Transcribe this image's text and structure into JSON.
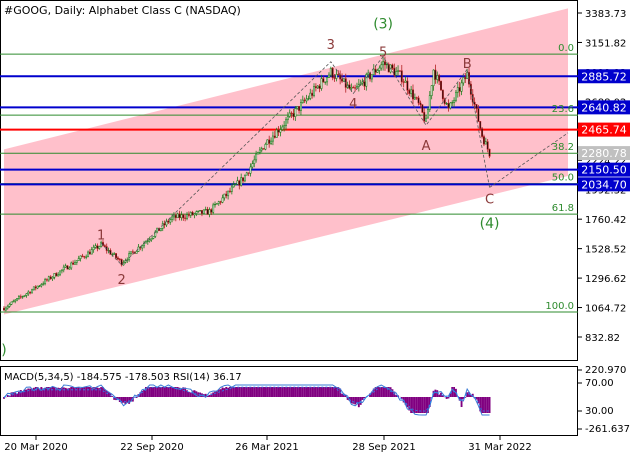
{
  "title": "#GOOG, Daily:  Alphabet Class C (NASDAQ)",
  "indicator_label": "MACD(5,34,5) -184.575 -178.503 RSI(14) 36.17",
  "colors": {
    "channel": "#ffc0cb",
    "candle_up": "#1e7f1e",
    "candle_down": "#b22222",
    "fib_line": "#2e8b2e",
    "fib_text": "#2e8b2e",
    "blue_level": "#0000cd",
    "red_level": "#ff0000",
    "wave_label": "#8b3a3a",
    "wave_label_major": "#2e8b2e",
    "macd_hist": "#800080",
    "macd_signal": "#1e90ff",
    "rsi": "#3a7bd5",
    "price_box_text": "#ffffff"
  },
  "chart_data": {
    "type": "candlestick",
    "price_axis_ticks": [
      3383.73,
      3151.82,
      2919.92,
      2688.02,
      2456.12,
      2224.22,
      1992.32,
      1760.42,
      1528.52,
      1296.62,
      1064.72,
      832.82
    ],
    "price_axis_labels": [
      "3383.73",
      "3151.82",
      "2919.92",
      "2688.02",
      "2456.12",
      "2224.22",
      "1992.32",
      "1760.42",
      "1528.52",
      "1296.62",
      "1064.72",
      "832.82"
    ],
    "time_labels": [
      "20 Mar 2020",
      "22 Sep 2020",
      "26 Mar 2021",
      "28 Sep 2021",
      "31 Mar 2022"
    ],
    "price_levels": [
      {
        "label": "2885.72",
        "value": 2885.72,
        "color": "blue"
      },
      {
        "label": "2640.82",
        "value": 2640.82,
        "color": "blue"
      },
      {
        "label": "2465.74",
        "value": 2465.74,
        "color": "red"
      },
      {
        "label": "2280.78",
        "value": 2280.78,
        "color": "gray"
      },
      {
        "label": "2150.50",
        "value": 2150.5,
        "color": "blue"
      },
      {
        "label": "2034.70",
        "value": 2034.7,
        "color": "blue"
      }
    ],
    "fibonacci": [
      {
        "label": "0.0",
        "value": 3060
      },
      {
        "label": "23.6",
        "value": 2580
      },
      {
        "label": "38.2",
        "value": 2280
      },
      {
        "label": "50.0",
        "value": 2040
      },
      {
        "label": "61.8",
        "value": 1800
      },
      {
        "label": "100.0",
        "value": 1030
      }
    ],
    "wave_labels": [
      {
        "text": "1",
        "i": 52,
        "price": 1570,
        "major": false,
        "pos": "above"
      },
      {
        "text": "2",
        "i": 63,
        "price": 1345,
        "major": false,
        "pos": "below"
      },
      {
        "text": "3",
        "i": 175,
        "price": 3070,
        "major": false,
        "pos": "above"
      },
      {
        "text": "4",
        "i": 187,
        "price": 2730,
        "major": false,
        "pos": "below"
      },
      {
        "text": "5",
        "i": 203,
        "price": 3010,
        "major": false,
        "pos": "above"
      },
      {
        "text": "(3)",
        "i": 203,
        "price": 3230,
        "major": true,
        "pos": "above"
      },
      {
        "text": "A",
        "i": 226,
        "price": 2400,
        "major": false,
        "pos": "below"
      },
      {
        "text": "B",
        "i": 248,
        "price": 2920,
        "major": false,
        "pos": "above"
      },
      {
        "text": "C",
        "i": 260,
        "price": 1980,
        "major": false,
        "pos": "below"
      },
      {
        "text": "(4)",
        "i": 260,
        "price": 1785,
        "major": true,
        "pos": "below"
      },
      {
        "text": ")",
        "i": 0,
        "price": 790,
        "major": true,
        "pos": "below"
      }
    ],
    "wave_path": [
      {
        "i": 52,
        "price": 1570
      },
      {
        "i": 63,
        "price": 1400
      },
      {
        "i": 175,
        "price": 3000
      },
      {
        "i": 187,
        "price": 2750
      },
      {
        "i": 203,
        "price": 3040
      },
      {
        "i": 226,
        "price": 2500
      },
      {
        "i": 248,
        "price": 2940
      },
      {
        "i": 260,
        "price": 2010
      }
    ],
    "channel": {
      "upper": [
        {
          "i": 0,
          "price": 2310
        },
        {
          "i": 302,
          "price": 3420
        }
      ],
      "lower": [
        {
          "i": 0,
          "price": 1010
        },
        {
          "i": 302,
          "price": 2100
        }
      ]
    },
    "projection": [
      {
        "i": 260,
        "price": 2010
      },
      {
        "i": 302,
        "price": 2440
      }
    ],
    "anchors": [
      {
        "i": 0,
        "price": 1060
      },
      {
        "i": 52,
        "price": 1560
      },
      {
        "i": 63,
        "price": 1420
      },
      {
        "i": 90,
        "price": 1770
      },
      {
        "i": 110,
        "price": 1820
      },
      {
        "i": 128,
        "price": 2080
      },
      {
        "i": 140,
        "price": 2360
      },
      {
        "i": 160,
        "price": 2670
      },
      {
        "i": 175,
        "price": 2920
      },
      {
        "i": 187,
        "price": 2760
      },
      {
        "i": 203,
        "price": 2990
      },
      {
        "i": 213,
        "price": 2880
      },
      {
        "i": 222,
        "price": 2660
      },
      {
        "i": 226,
        "price": 2520
      },
      {
        "i": 230,
        "price": 2940
      },
      {
        "i": 238,
        "price": 2620
      },
      {
        "i": 248,
        "price": 2900
      },
      {
        "i": 256,
        "price": 2420
      },
      {
        "i": 260,
        "price": 2280
      }
    ],
    "macd_axis_labels": [
      "220.970",
      "70.00",
      "30.00",
      "-261.637"
    ]
  }
}
